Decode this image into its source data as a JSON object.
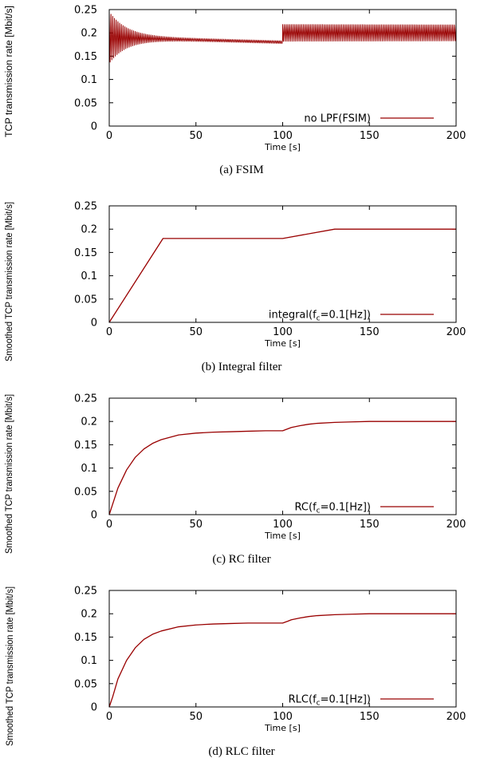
{
  "chart_data": [
    {
      "type": "line",
      "caption": "(a) FSIM",
      "xlabel": "Time [s]",
      "ylabel": "TCP transmission rate [Mbit/s]",
      "xlim": [
        0,
        200
      ],
      "ylim": [
        0,
        0.25
      ],
      "xticks": [
        "0",
        "50",
        "100",
        "150",
        "200"
      ],
      "yticks": [
        "0",
        "0.05",
        "0.1",
        "0.15",
        "0.2",
        "0.25"
      ],
      "legend_position": "bottom-right",
      "color": "#990000",
      "series": [
        {
          "name": "no LPF(FSIM)",
          "legend_main": "no LPF(FSIM)",
          "legend_sub": "",
          "legend_suffix": "",
          "kind": "oscillation",
          "segments": [
            {
              "x_start": 0,
              "x_end": 100,
              "center_start": 0.19,
              "center_end": 0.18,
              "amp_start": 0.055,
              "amp_end": 0.003,
              "decay_time": 10,
              "period": 1.0
            },
            {
              "x_start": 100,
              "x_end": 200,
              "center_start": 0.2,
              "center_end": 0.2,
              "amp_start": 0.018,
              "amp_end": 0.016,
              "decay_time": 200,
              "period": 1.0
            }
          ]
        }
      ]
    },
    {
      "type": "line",
      "caption": "(b) Integral filter",
      "xlabel": "Time [s]",
      "ylabel": "Smoothed TCP transmission rate [Mbit/s]",
      "xlim": [
        0,
        200
      ],
      "ylim": [
        0,
        0.25
      ],
      "xticks": [
        "0",
        "50",
        "100",
        "150",
        "200"
      ],
      "yticks": [
        "0",
        "0.05",
        "0.1",
        "0.15",
        "0.2",
        "0.25"
      ],
      "legend_position": "bottom-right",
      "color": "#990000",
      "series": [
        {
          "name": "integral(fc=0.1[Hz])",
          "legend_main": "integral(f",
          "legend_sub": "c",
          "legend_suffix": "=0.1[Hz])",
          "kind": "polyline",
          "x": [
            0,
            31,
            100,
            130,
            200
          ],
          "y": [
            0,
            0.18,
            0.18,
            0.2,
            0.2
          ]
        }
      ]
    },
    {
      "type": "line",
      "caption": "(c) RC filter",
      "xlabel": "Time [s]",
      "ylabel": "Smoothed TCP transmission rate [Mbit/s]",
      "xlim": [
        0,
        200
      ],
      "ylim": [
        0,
        0.25
      ],
      "xticks": [
        "0",
        "50",
        "100",
        "150",
        "200"
      ],
      "yticks": [
        "0",
        "0.05",
        "0.1",
        "0.15",
        "0.2",
        "0.25"
      ],
      "legend_position": "bottom-right",
      "color": "#990000",
      "series": [
        {
          "name": "RC(fc=0.1[Hz])",
          "legend_main": "RC(f",
          "legend_sub": "c",
          "legend_suffix": "=0.1[Hz])",
          "kind": "step_response",
          "x": [
            0,
            5,
            10,
            15,
            20,
            25,
            30,
            40,
            50,
            60,
            70,
            80,
            90,
            100,
            105,
            110,
            115,
            120,
            130,
            140,
            150,
            175,
            200
          ],
          "y": [
            0,
            0.057,
            0.096,
            0.123,
            0.141,
            0.153,
            0.161,
            0.171,
            0.175,
            0.177,
            0.178,
            0.179,
            0.18,
            0.18,
            0.187,
            0.191,
            0.194,
            0.196,
            0.198,
            0.199,
            0.2,
            0.2,
            0.2
          ]
        }
      ]
    },
    {
      "type": "line",
      "caption": "(d) RLC filter",
      "xlabel": "Time [s]",
      "ylabel": "Smoothed TCP transmission rate [Mbit/s]",
      "xlim": [
        0,
        200
      ],
      "ylim": [
        0,
        0.25
      ],
      "xticks": [
        "0",
        "50",
        "100",
        "150",
        "200"
      ],
      "yticks": [
        "0",
        "0.05",
        "0.1",
        "0.15",
        "0.2",
        "0.25"
      ],
      "legend_position": "bottom-right",
      "color": "#990000",
      "series": [
        {
          "name": "RLC(fc=0.1[Hz])",
          "legend_main": "RLC(f",
          "legend_sub": "c",
          "legend_suffix": "=0.1[Hz])",
          "kind": "step_response",
          "x": [
            0,
            2,
            5,
            10,
            15,
            20,
            25,
            30,
            40,
            50,
            60,
            70,
            80,
            90,
            100,
            103,
            105,
            110,
            115,
            120,
            130,
            140,
            150,
            175,
            200
          ],
          "y": [
            0,
            0.022,
            0.06,
            0.1,
            0.127,
            0.145,
            0.156,
            0.163,
            0.172,
            0.176,
            0.178,
            0.179,
            0.18,
            0.18,
            0.18,
            0.184,
            0.187,
            0.191,
            0.194,
            0.196,
            0.198,
            0.199,
            0.2,
            0.2,
            0.2
          ]
        }
      ]
    }
  ]
}
